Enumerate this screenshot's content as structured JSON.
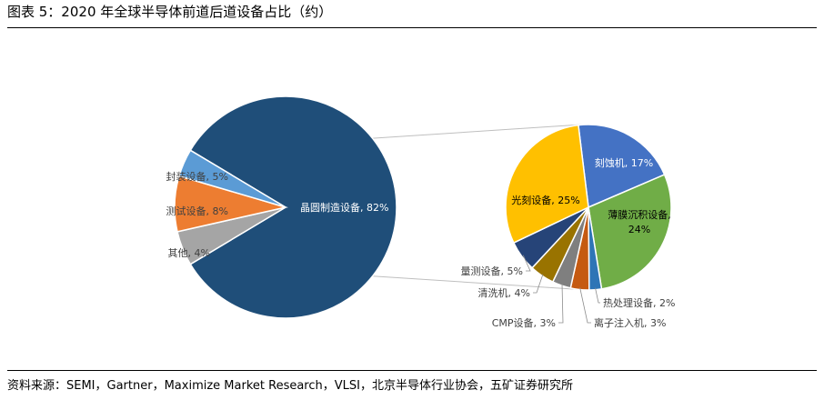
{
  "figure": {
    "title": "图表 5：2020 年全球半导体前道后道设备占比（约）",
    "source": "资料来源：SEMI，Gartner，Maximize   Market Research，VLSI，北京半导体行业协会，五矿证券研究所"
  },
  "chart_data": [
    {
      "type": "pie",
      "slices": [
        {
          "label": "晶圆制造设备",
          "value": 82,
          "display": "晶圆制造设备, 82%",
          "color": "#1F4E79"
        },
        {
          "label": "封装设备",
          "value": 5,
          "display": "封装设备, 5%",
          "color": "#A5A5A5"
        },
        {
          "label": "测试设备",
          "value": 8,
          "display": "测试设备, 8%",
          "color": "#ED7D31"
        },
        {
          "label": "其他",
          "value": 4,
          "display": "其他, 4%",
          "color": "#5B9BD5"
        }
      ]
    },
    {
      "type": "pie",
      "slices": [
        {
          "label": "刻蚀机",
          "value": 17,
          "display": "刻蚀机, 17%",
          "color": "#4472C4"
        },
        {
          "label": "薄膜沉积设备",
          "value": 24,
          "display": "薄膜沉积设备,\n24%",
          "color": "#70AD47"
        },
        {
          "label": "热处理设备",
          "value": 2,
          "display": "热处理设备, 2%",
          "color": "#2E75B6"
        },
        {
          "label": "离子注入机",
          "value": 3,
          "display": "离子注入机, 3%",
          "color": "#C55A11"
        },
        {
          "label": "CMP设备",
          "value": 3,
          "display": "CMP设备, 3%",
          "color": "#7F7F7F"
        },
        {
          "label": "清洗机",
          "value": 4,
          "display": "清洗机, 4%",
          "color": "#997300"
        },
        {
          "label": "量测设备",
          "value": 5,
          "display": "量测设备, 5%",
          "color": "#264478"
        },
        {
          "label": "光刻设备",
          "value": 25,
          "display": "光刻设备, 25%",
          "color": "#FFC000"
        }
      ]
    }
  ]
}
